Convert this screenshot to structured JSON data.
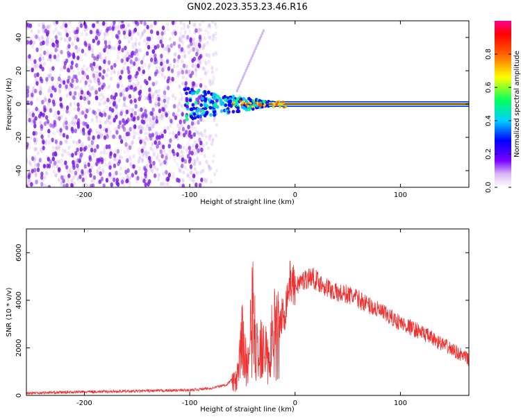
{
  "title": "GN02.2023.353.23.46.R16",
  "colors": {
    "spectrum_low": "#8a2be2",
    "snr_line": "#f03030",
    "axis": "#000000"
  },
  "chart_data": [
    {
      "type": "heatmap",
      "xlabel": "Height of straight line (km)",
      "ylabel": "Frequency (Hz)",
      "xlim": [
        -255,
        165
      ],
      "ylim": [
        -50,
        50
      ],
      "xticks": [
        "-200",
        "-100",
        "0",
        "100"
      ],
      "xtick_values": [
        -200,
        -100,
        0,
        100
      ],
      "yticks": [
        "-40",
        "-20",
        "0",
        "20",
        "40"
      ],
      "ytick_values": [
        -40,
        -20,
        0,
        20,
        40
      ],
      "colorbar": {
        "label": "Normalized spectral amplitude",
        "range": [
          0.0,
          1.0
        ],
        "ticks": [
          "0.0",
          "0.2",
          "0.4",
          "0.6",
          "0.8"
        ],
        "tick_values": [
          0.0,
          0.2,
          0.4,
          0.6,
          0.8
        ]
      },
      "features": {
        "noise_region_x": [
          -255,
          -82
        ],
        "carrier_frequency_hz": 0,
        "carrier_x": [
          -105,
          165
        ]
      },
      "grid": false
    },
    {
      "type": "line",
      "xlabel": "Height of straight line (km)",
      "ylabel": "SNR (10 * v/v)",
      "xlim": [
        -255,
        165
      ],
      "ylim": [
        0,
        7000
      ],
      "xticks": [
        "-200",
        "-100",
        "0",
        "100"
      ],
      "xtick_values": [
        -200,
        -100,
        0,
        100
      ],
      "yticks": [
        "0",
        "2000",
        "4000",
        "6000"
      ],
      "ytick_values": [
        0,
        2000,
        4000,
        6000
      ],
      "series": [
        {
          "x": [
            -255,
            -200,
            -150,
            -100,
            -80,
            -65,
            -55,
            -50,
            -45,
            -40,
            -35,
            -30,
            -25,
            -20,
            -15,
            -10,
            -5,
            0,
            10,
            15,
            20,
            30,
            40,
            50,
            60,
            70,
            80,
            90,
            100,
            110,
            120,
            130,
            140,
            150,
            160,
            165
          ],
          "values": [
            100,
            150,
            180,
            220,
            300,
            450,
            900,
            3000,
            1500,
            4500,
            1800,
            3800,
            1500,
            4200,
            3000,
            3500,
            4800,
            4600,
            4900,
            5000,
            4850,
            4550,
            4300,
            4250,
            4050,
            3800,
            3550,
            3300,
            3050,
            2850,
            2650,
            2400,
            2150,
            1900,
            1650,
            1500
          ]
        }
      ],
      "grid": false
    }
  ]
}
